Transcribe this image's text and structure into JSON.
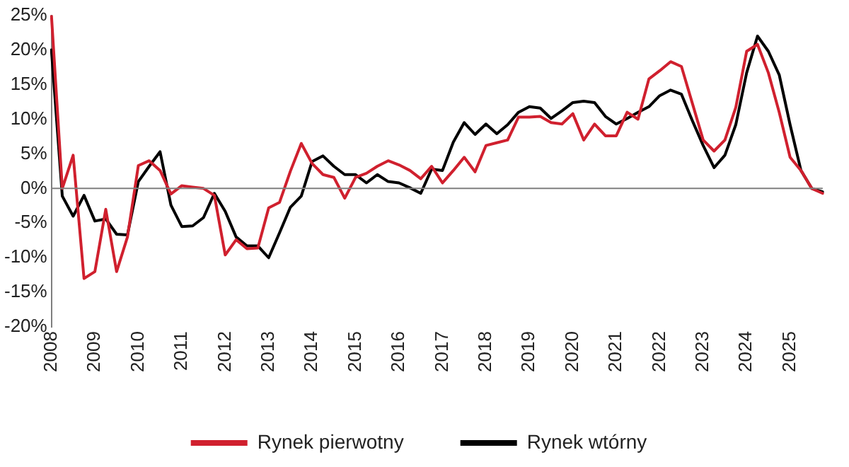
{
  "chart_data": {
    "type": "line",
    "categories": [
      "2008",
      null,
      null,
      null,
      "2009",
      null,
      null,
      null,
      "2010",
      null,
      null,
      null,
      "2011",
      null,
      null,
      null,
      "2012",
      null,
      null,
      null,
      "2013",
      null,
      null,
      null,
      "2014",
      null,
      null,
      null,
      "2015",
      null,
      null,
      null,
      "2016",
      null,
      null,
      null,
      "2017",
      null,
      null,
      null,
      "2018",
      null,
      null,
      null,
      "2019",
      null,
      null,
      null,
      "2020",
      null,
      null,
      null,
      "2021",
      null,
      null,
      null,
      "2022",
      null,
      null,
      null,
      "2023",
      null,
      null,
      null,
      "2024",
      null,
      null,
      null,
      "2025",
      null,
      null,
      null
    ],
    "series": [
      {
        "name": "Rynek pierwotny",
        "color": "#d0202e",
        "values": [
          25,
          0,
          4.8,
          -13,
          -12,
          -3,
          -12,
          -7,
          3.3,
          4,
          2.6,
          -0.8,
          0.4,
          0.2,
          0,
          -1,
          -9.6,
          -7.4,
          -8.7,
          -8.6,
          -2.8,
          -2,
          2.5,
          6.5,
          3.6,
          2,
          1.6,
          -1.4,
          1.6,
          2.2,
          3.2,
          4,
          3.4,
          2.6,
          1.4,
          3.2,
          0.8,
          2.6,
          4.5,
          2.4,
          6.2,
          6.6,
          7,
          10.3,
          10.3,
          10.4,
          9.5,
          9.3,
          10.8,
          7,
          9.3,
          7.6,
          7.6,
          11,
          10,
          15.8,
          17,
          18.3,
          17.6,
          12.3,
          7,
          5.4,
          7,
          11.7,
          19.8,
          20.8,
          16.7,
          11,
          4.5,
          2.6,
          0,
          -0.7
        ]
      },
      {
        "name": "Rynek wtórny",
        "color": "#000000",
        "values": [
          20,
          -1.1,
          -4,
          -1,
          -4.7,
          -4.4,
          -6.6,
          -6.7,
          1,
          3.2,
          5.3,
          -2.4,
          -5.5,
          -5.4,
          -4.2,
          -0.7,
          -3.3,
          -7,
          -8.3,
          -8.3,
          -10,
          -6.4,
          -2.7,
          -1.1,
          3.9,
          4.7,
          3.2,
          2,
          2,
          0.8,
          2,
          1,
          0.8,
          0.1,
          -0.7,
          2.8,
          2.6,
          6.7,
          9.5,
          7.8,
          9.3,
          7.9,
          9.2,
          11,
          11.8,
          11.6,
          10.1,
          11.2,
          12.4,
          12.6,
          12.4,
          10.4,
          9.3,
          10.1,
          11,
          11.8,
          13.4,
          14.2,
          13.6,
          9.8,
          6.2,
          3,
          4.8,
          9.2,
          16.7,
          22,
          19.8,
          16.4,
          9.2,
          2.6,
          0,
          -0.5
        ]
      }
    ],
    "ylim": [
      -20,
      25
    ],
    "yticks": [
      {
        "value": -20,
        "label": "-20%"
      },
      {
        "value": -15,
        "label": "-15%"
      },
      {
        "value": -10,
        "label": "-10%"
      },
      {
        "value": -5,
        "label": "-5%"
      },
      {
        "value": 0,
        "label": "0%"
      },
      {
        "value": 5,
        "label": "5%"
      },
      {
        "value": 10,
        "label": "10%"
      },
      {
        "value": 15,
        "label": "15%"
      },
      {
        "value": 20,
        "label": "20%"
      },
      {
        "value": 25,
        "label": "25%"
      }
    ],
    "ref_lines": [
      {
        "axis": "y",
        "value": 0,
        "color": "#7f7f7f",
        "line_style": "solid"
      }
    ],
    "legend": "bottom",
    "grid": false,
    "marker": "none",
    "line_style": "solid"
  }
}
